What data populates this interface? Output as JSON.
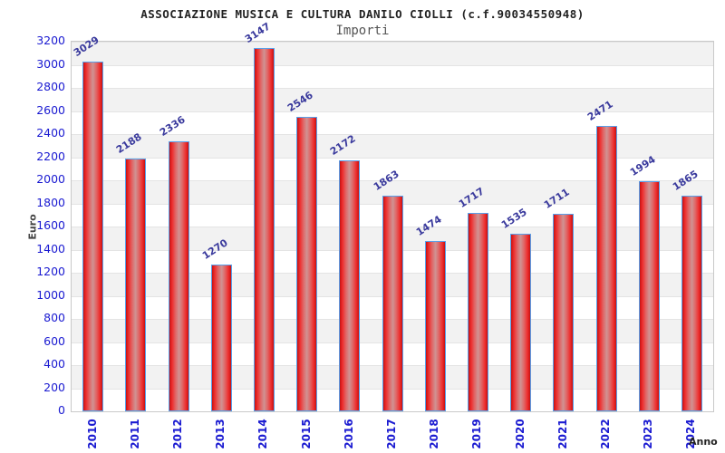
{
  "header": {
    "title": "ASSOCIAZIONE MUSICA E CULTURA DANILO CIOLLI (c.f.90034550948)",
    "subtitle": "Importi"
  },
  "chart_data": {
    "type": "bar",
    "title": "ASSOCIAZIONE MUSICA E CULTURA DANILO CIOLLI (c.f.90034550948)",
    "subtitle": "Importi",
    "xlabel": "Anno",
    "ylabel": "Euro",
    "categories": [
      "2010",
      "2011",
      "2012",
      "2013",
      "2014",
      "2015",
      "2016",
      "2017",
      "2018",
      "2019",
      "2020",
      "2021",
      "2022",
      "2023",
      "2024"
    ],
    "values": [
      3029,
      2188,
      2336,
      1270,
      3147,
      2546,
      2172,
      1863,
      1474,
      1717,
      1535,
      1711,
      2471,
      1994,
      1865
    ],
    "ylim": [
      0,
      3200
    ],
    "ytick_step": 200,
    "legend": "none",
    "grid": "horizontal alternating bands every 200",
    "colors": {
      "bar_fill_edge": "#c51212",
      "bar_fill_mid": "#d09393",
      "bar_border": "#58a0ea",
      "axis_tick_text": "#1a1ad1",
      "value_label_text": "#3a3a9d",
      "band_stripe": "#f2f2f2",
      "plot_border": "#c9c9c9",
      "title_text": "#222222",
      "subtitle_text": "#555555"
    }
  }
}
